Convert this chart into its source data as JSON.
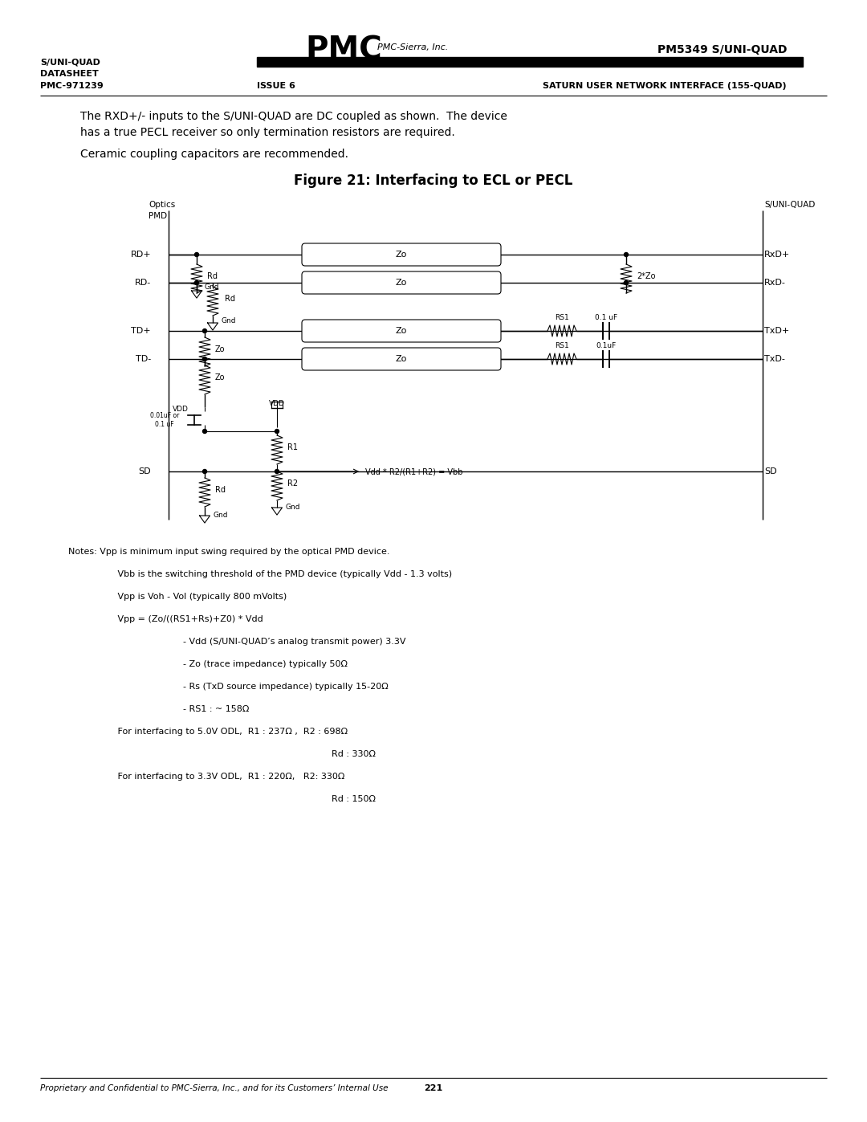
{
  "page_width": 10.8,
  "page_height": 13.97,
  "bg_color": "#ffffff",
  "header": {
    "company": "PMC-Sierra, Inc.",
    "product": "PM5349 S/UNI-QUAD",
    "doc_type1": "S/UNI-QUAD",
    "doc_type2": "DATASHEET",
    "doc_num": "PMC-971239",
    "issue": "ISSUE 6",
    "subtitle": "SATURN USER NETWORK INTERFACE (155-QUAD)"
  },
  "body_text1": "The RXD+/- inputs to the S/UNI-QUAD are DC coupled as shown.  The device",
  "body_text2": "has a true PECL receiver so only termination resistors are required.",
  "body_text3": "Ceramic coupling capacitors are recommended.",
  "figure_title": "Figure 21: Interfacing to ECL or PECL",
  "notes": [
    "Notes: Vpp is minimum input swing required by the optical PMD device.",
    "         Vbb is the switching threshold of the PMD device (typically Vdd - 1.3 volts)",
    "         Vpp is Voh - Vol (typically 800 mVolts)",
    "         Vpp = (Zo/((RS1+Rs)+Z0) * Vdd",
    "                  - Vdd (S/UNI-QUAD’s analog transmit power) 3.3V",
    "                  - Zo (trace impedance) typically 50Ω",
    "                  - Rs (TxD source impedance) typically 15-20Ω",
    "                  - RS1 : ~ 158Ω",
    "         For interfacing to 5.0V ODL,  R1 : 237Ω ,  R2 : 698Ω",
    "                                                Rd : 330Ω",
    "         For interfacing to 3.3V ODL,  R1 : 220Ω,   R2: 330Ω",
    "                                                Rd : 150Ω"
  ],
  "footer_text": "Proprietary and Confidential to PMC-Sierra, Inc., and for its Customers’ Internal Use",
  "footer_page": "221"
}
